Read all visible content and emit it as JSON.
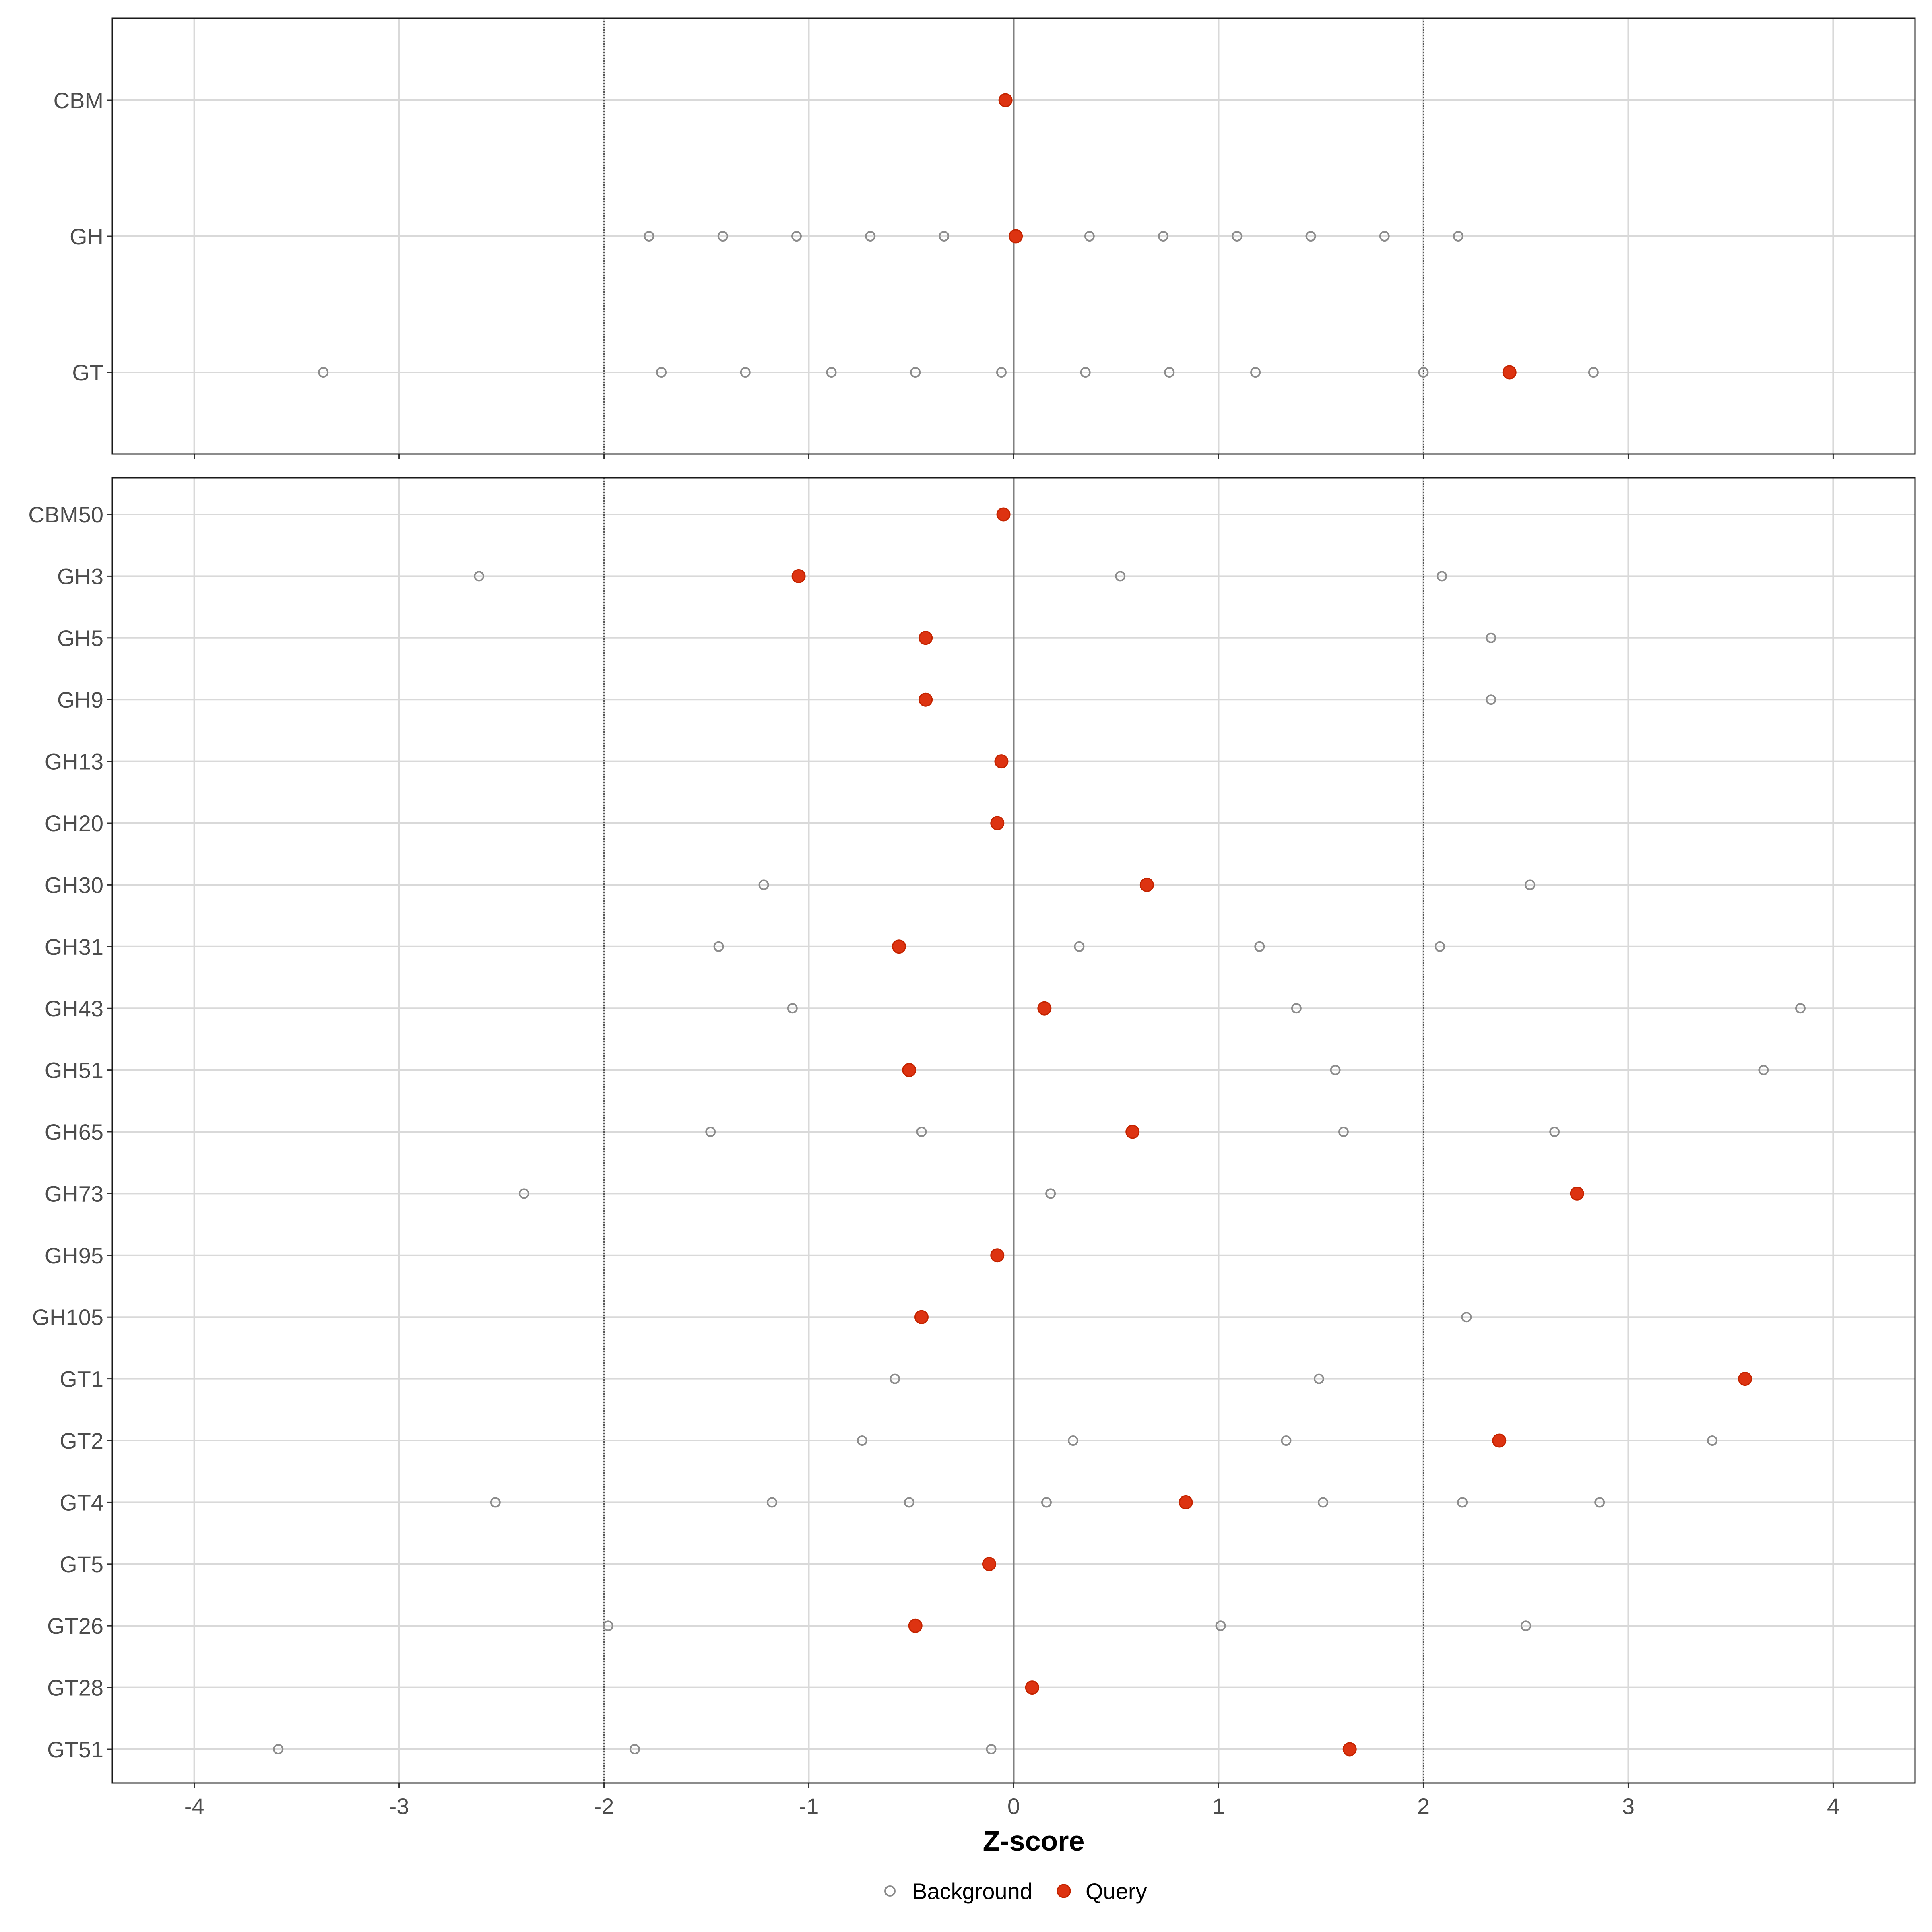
{
  "chart_data": {
    "type": "scatter",
    "xlabel": "Z-score",
    "xlim": [
      -4.4,
      4.4
    ],
    "x_ticks": [
      "-4",
      "-3",
      "-2",
      "-1",
      "0",
      "1",
      "2",
      "3",
      "4"
    ],
    "x_tick_values": [
      -4,
      -3,
      -2,
      -1,
      0,
      1,
      2,
      3,
      4
    ],
    "threshold_lines": [
      -2,
      2
    ],
    "zero_line": 0,
    "grid": true,
    "legend": {
      "placement": "bottom",
      "entries": [
        {
          "name": "Background",
          "style": "open-circle",
          "color": "#8c8c8c"
        },
        {
          "name": "Query",
          "style": "filled-circle",
          "color": "#dd3311"
        }
      ]
    },
    "panels": [
      {
        "categories": [
          "CBM",
          "GH",
          "GT"
        ],
        "series": [
          {
            "name": "Background",
            "points": [
              {
                "category": "GH",
                "x": [
                  -1.78,
                  -1.42,
                  -1.06,
                  -0.7,
                  -0.34,
                  0.37,
                  0.73,
                  1.09,
                  1.45,
                  1.81,
                  2.17
                ]
              },
              {
                "category": "GT",
                "x": [
                  -3.37,
                  -1.72,
                  -1.31,
                  -0.89,
                  -0.48,
                  -0.06,
                  0.35,
                  0.76,
                  1.18,
                  2.0,
                  2.83
                ]
              }
            ]
          },
          {
            "name": "Query",
            "points": [
              {
                "category": "CBM",
                "x": [
                  -0.04
                ]
              },
              {
                "category": "GH",
                "x": [
                  0.01
                ]
              },
              {
                "category": "GT",
                "x": [
                  2.42
                ]
              }
            ]
          }
        ]
      },
      {
        "categories": [
          "CBM50",
          "GH3",
          "GH5",
          "GH9",
          "GH13",
          "GH20",
          "GH30",
          "GH31",
          "GH43",
          "GH51",
          "GH65",
          "GH73",
          "GH95",
          "GH105",
          "GT1",
          "GT2",
          "GT4",
          "GT5",
          "GT26",
          "GT28",
          "GT51"
        ],
        "series": [
          {
            "name": "Background",
            "points": [
              {
                "category": "GH3",
                "x": [
                  -2.61,
                  0.52,
                  2.09
                ]
              },
              {
                "category": "GH5",
                "x": [
                  2.33
                ]
              },
              {
                "category": "GH9",
                "x": [
                  2.33
                ]
              },
              {
                "category": "GH30",
                "x": [
                  -1.22,
                  2.52
                ]
              },
              {
                "category": "GH31",
                "x": [
                  -1.44,
                  0.32,
                  1.2,
                  2.08
                ]
              },
              {
                "category": "GH43",
                "x": [
                  -1.08,
                  1.38,
                  3.84
                ]
              },
              {
                "category": "GH51",
                "x": [
                  1.57,
                  3.66
                ]
              },
              {
                "category": "GH65",
                "x": [
                  -1.48,
                  -0.45,
                  1.61,
                  2.64
                ]
              },
              {
                "category": "GH73",
                "x": [
                  -2.39,
                  0.18
                ]
              },
              {
                "category": "GH105",
                "x": [
                  2.21
                ]
              },
              {
                "category": "GT1",
                "x": [
                  -0.58,
                  1.49
                ]
              },
              {
                "category": "GT2",
                "x": [
                  -0.74,
                  0.29,
                  1.33,
                  3.41
                ]
              },
              {
                "category": "GT4",
                "x": [
                  -2.53,
                  -1.18,
                  -0.51,
                  0.16,
                  1.51,
                  2.19,
                  2.86
                ]
              },
              {
                "category": "GT26",
                "x": [
                  -1.98,
                  1.01,
                  2.5
                ]
              },
              {
                "category": "GT51",
                "x": [
                  -3.59,
                  -1.85,
                  -0.11
                ]
              }
            ]
          },
          {
            "name": "Query",
            "points": [
              {
                "category": "CBM50",
                "x": [
                  -0.05
                ]
              },
              {
                "category": "GH3",
                "x": [
                  -1.05
                ]
              },
              {
                "category": "GH5",
                "x": [
                  -0.43
                ]
              },
              {
                "category": "GH9",
                "x": [
                  -0.43
                ]
              },
              {
                "category": "GH13",
                "x": [
                  -0.06
                ]
              },
              {
                "category": "GH20",
                "x": [
                  -0.08
                ]
              },
              {
                "category": "GH30",
                "x": [
                  0.65
                ]
              },
              {
                "category": "GH31",
                "x": [
                  -0.56
                ]
              },
              {
                "category": "GH43",
                "x": [
                  0.15
                ]
              },
              {
                "category": "GH51",
                "x": [
                  -0.51
                ]
              },
              {
                "category": "GH65",
                "x": [
                  0.58
                ]
              },
              {
                "category": "GH73",
                "x": [
                  2.75
                ]
              },
              {
                "category": "GH95",
                "x": [
                  -0.08
                ]
              },
              {
                "category": "GH105",
                "x": [
                  -0.45
                ]
              },
              {
                "category": "GT1",
                "x": [
                  3.57
                ]
              },
              {
                "category": "GT2",
                "x": [
                  2.37
                ]
              },
              {
                "category": "GT4",
                "x": [
                  0.84
                ]
              },
              {
                "category": "GT5",
                "x": [
                  -0.12
                ]
              },
              {
                "category": "GT26",
                "x": [
                  -0.48
                ]
              },
              {
                "category": "GT28",
                "x": [
                  0.09
                ]
              },
              {
                "category": "GT51",
                "x": [
                  1.64
                ]
              }
            ]
          }
        ]
      }
    ]
  }
}
